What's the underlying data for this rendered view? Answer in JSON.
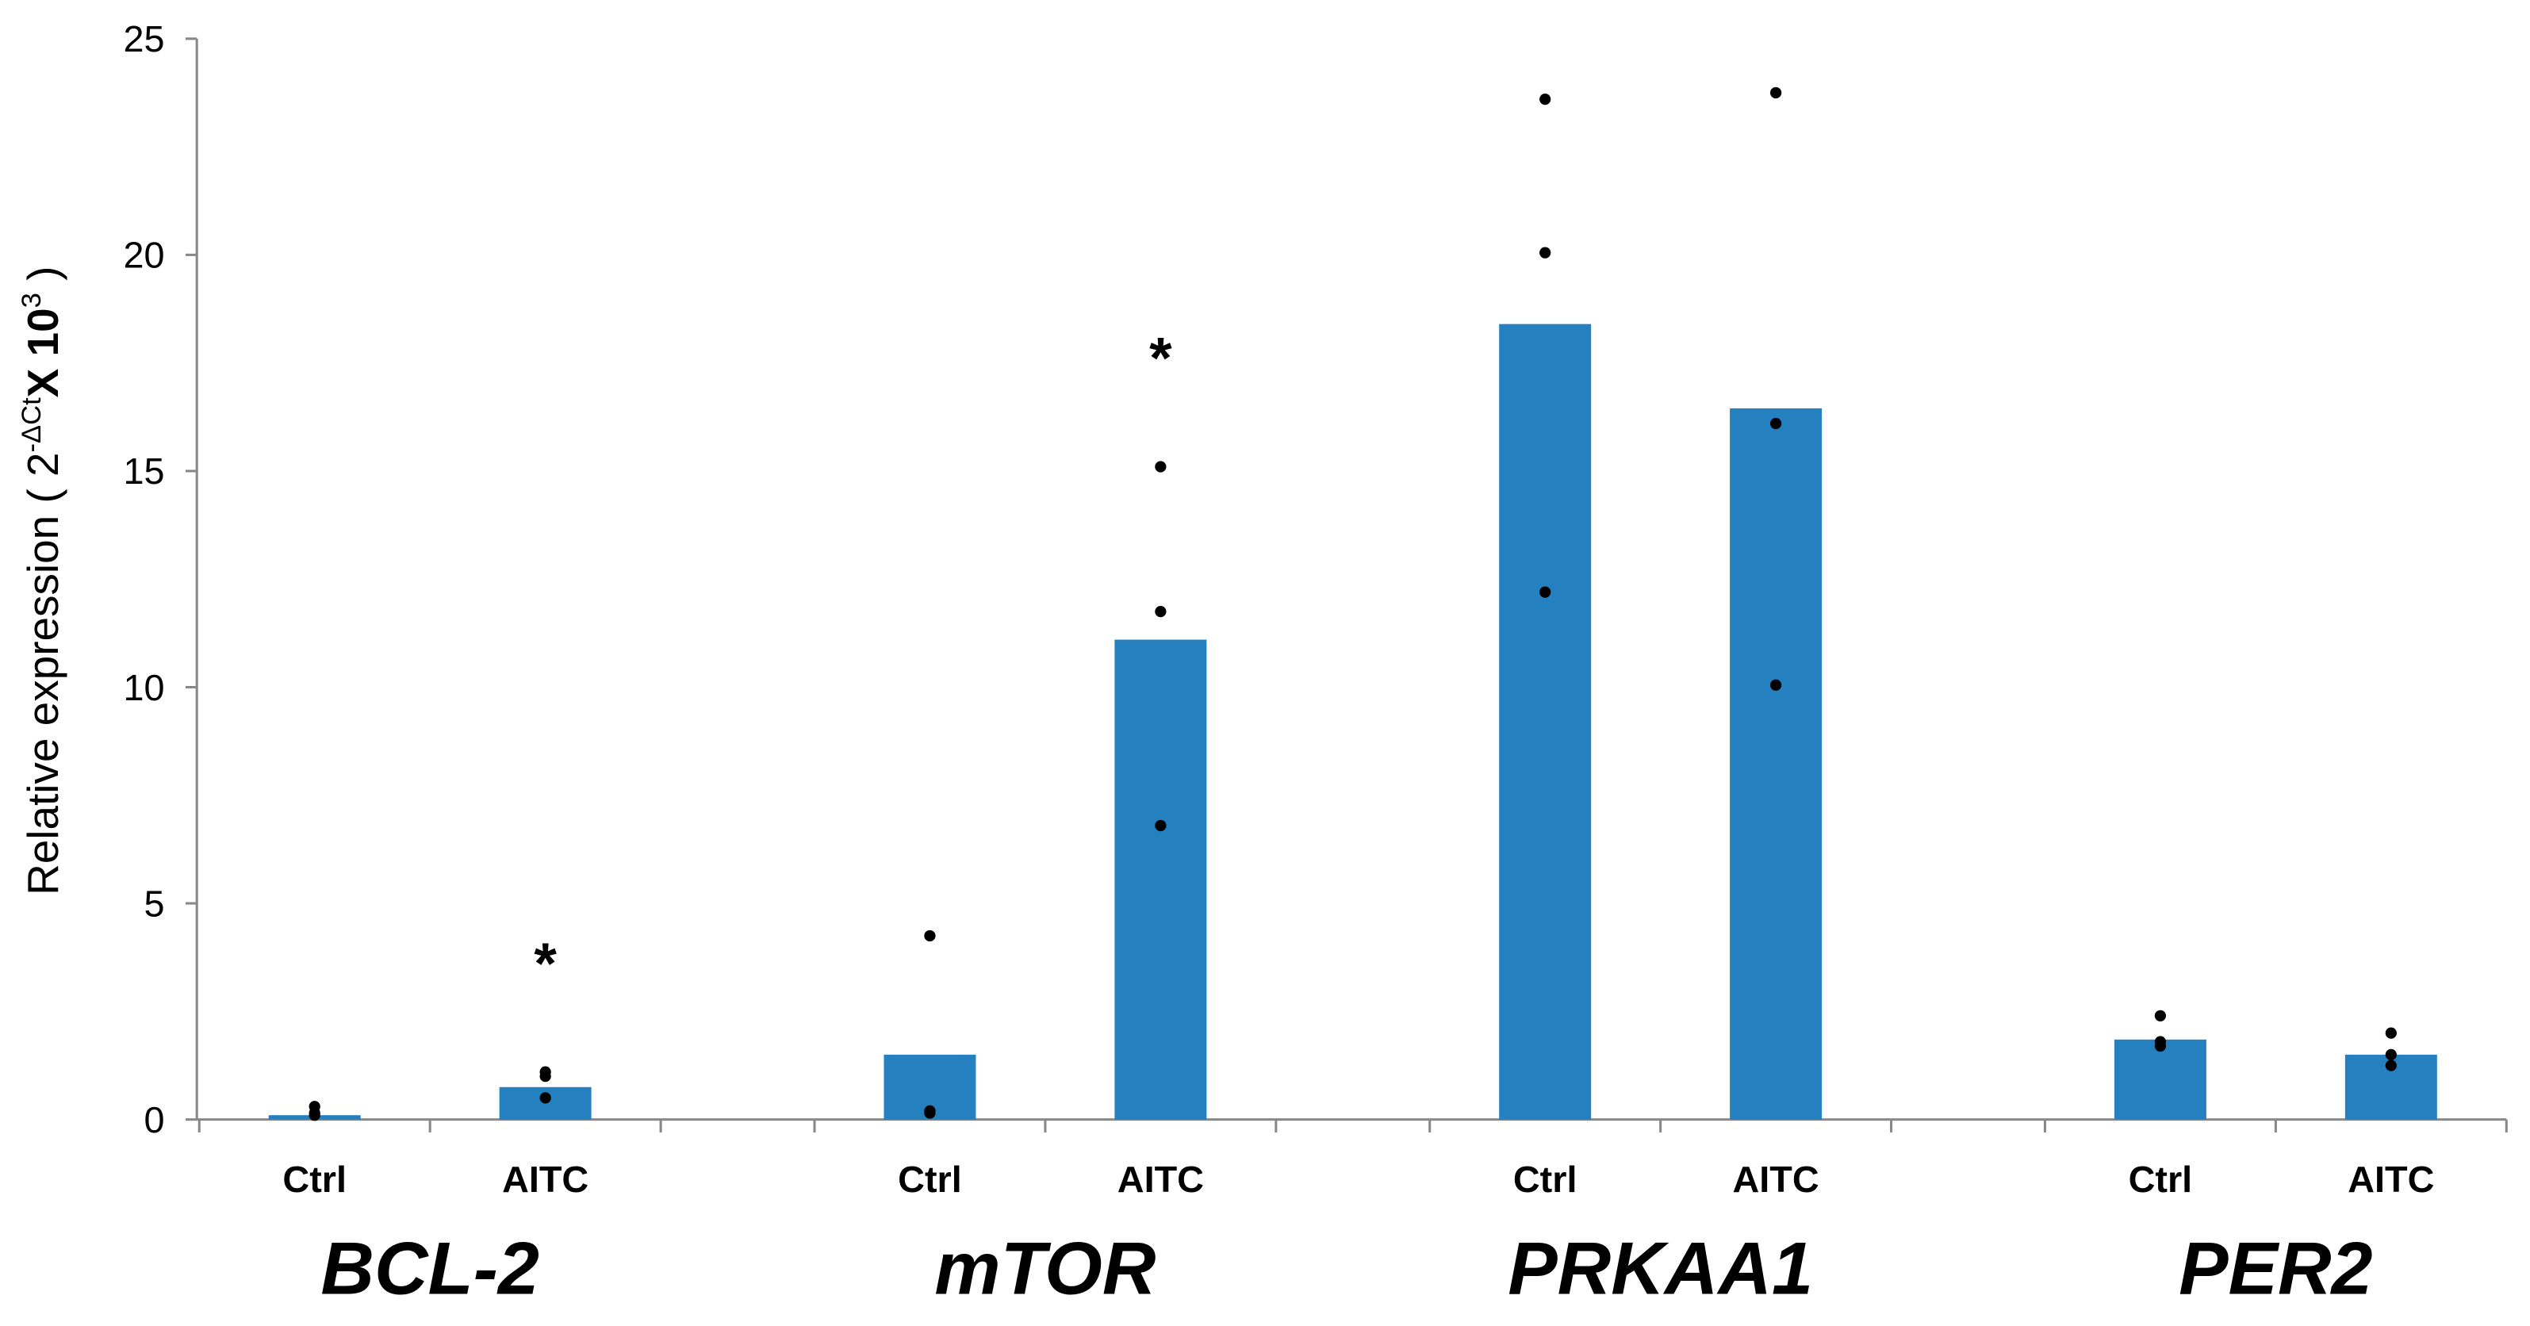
{
  "chart_data": {
    "type": "bar",
    "y_label": {
      "text": "Relative expression ( 2",
      "sup1": "-ΔCt",
      "mid": "X 10",
      "sup2": "3",
      "end": " )"
    },
    "categories": [
      "Ctrl",
      "AITC"
    ],
    "color": "#2580c0",
    "point_color": "#000000",
    "ylim": [
      0,
      25
    ],
    "yticks": [
      0,
      5,
      10,
      15,
      20,
      25
    ],
    "groups": [
      {
        "name": "BCL-2",
        "values": [
          0.1,
          0.75
        ],
        "points": [
          [
            0.3,
            0.15,
            0.1
          ],
          [
            1.1,
            1.0,
            0.5
          ]
        ],
        "annotations": [
          null,
          "*"
        ]
      },
      {
        "name": "mTOR",
        "values": [
          1.5,
          11.1
        ],
        "points": [
          [
            4.25,
            0.2,
            0.15
          ],
          [
            15.1,
            11.75,
            6.8
          ]
        ],
        "annotations": [
          null,
          "*"
        ]
      },
      {
        "name": "PRKAA1",
        "values": [
          18.4,
          16.45
        ],
        "points": [
          [
            23.6,
            20.05,
            12.2
          ],
          [
            23.75,
            16.1,
            10.05
          ]
        ],
        "annotations": [
          null,
          null
        ]
      },
      {
        "name": "PER2",
        "values": [
          1.85,
          1.5
        ],
        "points": [
          [
            2.4,
            1.8,
            1.7
          ],
          [
            2.0,
            1.5,
            1.25
          ]
        ],
        "annotations": [
          null,
          null
        ]
      }
    ]
  }
}
